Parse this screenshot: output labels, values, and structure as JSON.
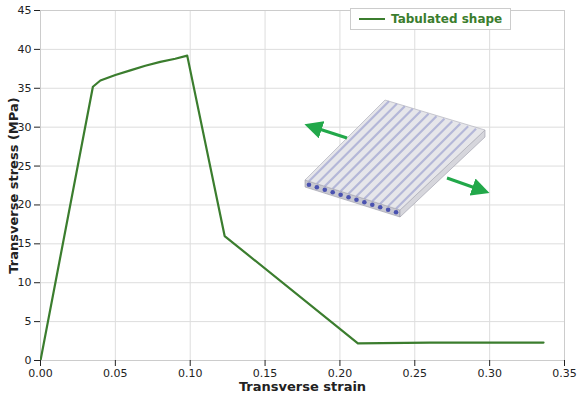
{
  "chart_data": {
    "type": "line",
    "x_label": "Transverse strain",
    "y_label": "Transverse stress (MPa)",
    "x": [
      0,
      0.035,
      0.04,
      0.05,
      0.06,
      0.07,
      0.08,
      0.09,
      0.098,
      0.123,
      0.212,
      0.26,
      0.336
    ],
    "series": [
      {
        "name": "Tabulated shape",
        "color": "#3b7d2e",
        "values": [
          0,
          35.2,
          36.0,
          36.7,
          37.3,
          37.9,
          38.4,
          38.8,
          39.2,
          16,
          2.2,
          2.3,
          2.3
        ]
      }
    ],
    "xlim": [
      0,
      0.35
    ],
    "xticks": [
      {
        "value": 0,
        "label": "0.00"
      },
      {
        "value": 0.05,
        "label": "0.05"
      },
      {
        "value": 0.1,
        "label": "0.10"
      },
      {
        "value": 0.15,
        "label": "0.15"
      },
      {
        "value": 0.2,
        "label": "0.20"
      },
      {
        "value": 0.25,
        "label": "0.25"
      },
      {
        "value": 0.3,
        "label": "0.30"
      },
      {
        "value": 0.35,
        "label": "0.35"
      }
    ],
    "ylim": [
      0,
      45
    ],
    "yticks": [
      0,
      5,
      10,
      15,
      20,
      25,
      30,
      35,
      40,
      45
    ],
    "grid": true,
    "legend": "top-right"
  }
}
